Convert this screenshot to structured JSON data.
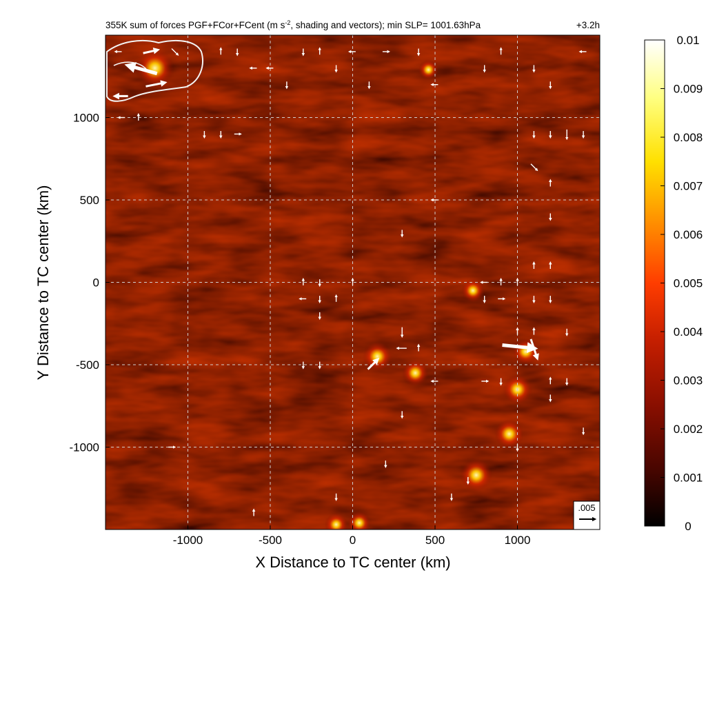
{
  "figure": {
    "title": "355K sum of forces PGF+FCor+FCent (m s",
    "title_sup": "-2",
    "title_tail": ", shading and vectors); min SLP= 1001.63hPa",
    "time_label": "+3.2h",
    "xlabel": "X Distance to TC center (km)",
    "ylabel": "Y Distance to TC center (km)",
    "reference_vector_label": ".005"
  },
  "colors": {
    "background_field": "#2a0400",
    "gridline": "#cfcfcf",
    "vectors": "#ffffff",
    "contour": "#f3f3f3",
    "colormap": [
      "#000000",
      "#4a0600",
      "#8a0f00",
      "#c41e00",
      "#ff3d00",
      "#ff8c00",
      "#ffe000",
      "#ffff80",
      "#ffffff"
    ]
  },
  "chart_data": {
    "type": "heatmap",
    "title": "355K sum of forces PGF+FCor+FCent (m s-2, shading and vectors); min SLP= 1001.63hPa",
    "time_label": "+3.2h",
    "xlabel": "X Distance to TC center (km)",
    "ylabel": "Y Distance to TC center (km)",
    "xlim": [
      -1500,
      1500
    ],
    "ylim": [
      -1500,
      1500
    ],
    "xticks": [
      -1000,
      -500,
      0,
      500,
      1000
    ],
    "yticks": [
      -1000,
      -500,
      0,
      500,
      1000
    ],
    "xtick_labels": [
      "-1000",
      "-500",
      "0",
      "500",
      "1000"
    ],
    "ytick_labels": [
      "-1000",
      "-500",
      "0",
      "500",
      "1000"
    ],
    "grid": true,
    "colorbar": {
      "range": [
        0,
        0.01
      ],
      "ticks": [
        0,
        0.001,
        0.002,
        0.003,
        0.004,
        0.005,
        0.006,
        0.007,
        0.008,
        0.009,
        0.01
      ],
      "tick_labels": [
        "0",
        "0.001",
        "0.002",
        "0.003",
        "0.004",
        "0.005",
        "0.006",
        "0.007",
        "0.008",
        "0.009",
        "0.01"
      ]
    },
    "reference_vector": 0.005,
    "hotspots": [
      {
        "x": -1200,
        "y": 1300,
        "value": 0.009
      },
      {
        "x": 150,
        "y": -450,
        "value": 0.006
      },
      {
        "x": 380,
        "y": -550,
        "value": 0.005
      },
      {
        "x": 1000,
        "y": -650,
        "value": 0.006
      },
      {
        "x": 1050,
        "y": -420,
        "value": 0.005
      },
      {
        "x": 950,
        "y": -920,
        "value": 0.006
      },
      {
        "x": 750,
        "y": -1170,
        "value": 0.007
      },
      {
        "x": 730,
        "y": -50,
        "value": 0.004
      },
      {
        "x": 460,
        "y": 1290,
        "value": 0.003
      },
      {
        "x": -100,
        "y": -1470,
        "value": 0.004
      },
      {
        "x": 40,
        "y": -1460,
        "value": 0.004
      }
    ],
    "vectors": [
      {
        "x": -1420,
        "y": 1400,
        "u": -0.002,
        "v": 0.0
      },
      {
        "x": -1230,
        "y": 1400,
        "u": 0.0045,
        "v": 0.001
      },
      {
        "x": -1270,
        "y": 1290,
        "u": -0.009,
        "v": 0.0025
      },
      {
        "x": -1200,
        "y": 1200,
        "u": 0.006,
        "v": 0.0012
      },
      {
        "x": -1400,
        "y": 1130,
        "u": -0.004,
        "v": 0.0
      },
      {
        "x": -1080,
        "y": 1400,
        "u": 0.002,
        "v": -0.002
      },
      {
        "x": -800,
        "y": 1400,
        "u": 0.0,
        "v": 0.002
      },
      {
        "x": -700,
        "y": 1400,
        "u": 0.0,
        "v": -0.002
      },
      {
        "x": -600,
        "y": 1300,
        "u": -0.002,
        "v": 0.0
      },
      {
        "x": -500,
        "y": 1300,
        "u": -0.002,
        "v": 0.0
      },
      {
        "x": -400,
        "y": 1200,
        "u": 0.0,
        "v": -0.002
      },
      {
        "x": -300,
        "y": 1400,
        "u": 0.0,
        "v": -0.002
      },
      {
        "x": -200,
        "y": 1400,
        "u": 0.0,
        "v": 0.002
      },
      {
        "x": -100,
        "y": 1300,
        "u": 0.0,
        "v": -0.002
      },
      {
        "x": 0,
        "y": 1400,
        "u": -0.002,
        "v": 0.0
      },
      {
        "x": 100,
        "y": 1200,
        "u": 0.0,
        "v": -0.002
      },
      {
        "x": 200,
        "y": 1400,
        "u": 0.002,
        "v": 0.0
      },
      {
        "x": 400,
        "y": 1400,
        "u": 0.0,
        "v": -0.002
      },
      {
        "x": 500,
        "y": 1200,
        "u": -0.002,
        "v": 0.0
      },
      {
        "x": 800,
        "y": 1300,
        "u": 0.0,
        "v": -0.002
      },
      {
        "x": 900,
        "y": 1400,
        "u": 0.0,
        "v": 0.002
      },
      {
        "x": 1100,
        "y": 1300,
        "u": 0.0,
        "v": -0.002
      },
      {
        "x": 1200,
        "y": 1200,
        "u": 0.0,
        "v": -0.002
      },
      {
        "x": 1400,
        "y": 1400,
        "u": -0.002,
        "v": 0.0
      },
      {
        "x": -1400,
        "y": 1000,
        "u": -0.002,
        "v": 0.0
      },
      {
        "x": -1300,
        "y": 1000,
        "u": 0.0,
        "v": 0.002
      },
      {
        "x": -900,
        "y": 900,
        "u": 0.0,
        "v": -0.002
      },
      {
        "x": -800,
        "y": 900,
        "u": 0.0,
        "v": -0.002
      },
      {
        "x": -700,
        "y": 900,
        "u": 0.002,
        "v": 0.0
      },
      {
        "x": 1100,
        "y": 900,
        "u": 0.0,
        "v": -0.002
      },
      {
        "x": 1200,
        "y": 900,
        "u": 0.0,
        "v": -0.002
      },
      {
        "x": 1300,
        "y": 900,
        "u": 0.0,
        "v": -0.003
      },
      {
        "x": 1400,
        "y": 900,
        "u": 0.0,
        "v": -0.002
      },
      {
        "x": 1100,
        "y": 700,
        "u": 0.002,
        "v": -0.002
      },
      {
        "x": 1200,
        "y": 600,
        "u": 0.0,
        "v": 0.002
      },
      {
        "x": 1200,
        "y": 400,
        "u": 0.0,
        "v": -0.002
      },
      {
        "x": 300,
        "y": 300,
        "u": 0.0,
        "v": -0.002
      },
      {
        "x": 500,
        "y": 500,
        "u": -0.002,
        "v": 0.0
      },
      {
        "x": 1100,
        "y": 100,
        "u": 0.0,
        "v": 0.002
      },
      {
        "x": 1200,
        "y": 100,
        "u": 0.0,
        "v": 0.002
      },
      {
        "x": -300,
        "y": 0,
        "u": 0.0,
        "v": 0.002
      },
      {
        "x": -200,
        "y": 0,
        "u": 0.0,
        "v": -0.002
      },
      {
        "x": 0,
        "y": 0,
        "u": 0.0,
        "v": 0.002
      },
      {
        "x": 800,
        "y": 0,
        "u": -0.002,
        "v": 0.0
      },
      {
        "x": 900,
        "y": 0,
        "u": 0.0,
        "v": 0.002
      },
      {
        "x": 1000,
        "y": 0,
        "u": 0.0,
        "v": 0.002
      },
      {
        "x": -300,
        "y": -100,
        "u": -0.002,
        "v": 0.0
      },
      {
        "x": -200,
        "y": -100,
        "u": 0.0,
        "v": -0.002
      },
      {
        "x": -100,
        "y": -100,
        "u": 0.0,
        "v": 0.002
      },
      {
        "x": 800,
        "y": -100,
        "u": 0.0,
        "v": -0.002
      },
      {
        "x": 900,
        "y": -100,
        "u": 0.002,
        "v": 0.0
      },
      {
        "x": 1100,
        "y": -100,
        "u": 0.0,
        "v": -0.002
      },
      {
        "x": 1200,
        "y": -100,
        "u": 0.0,
        "v": -0.002
      },
      {
        "x": -200,
        "y": -200,
        "u": 0.0,
        "v": -0.002
      },
      {
        "x": 300,
        "y": -300,
        "u": 0.0,
        "v": -0.003
      },
      {
        "x": 1000,
        "y": -300,
        "u": 0.0,
        "v": 0.002
      },
      {
        "x": 1300,
        "y": -300,
        "u": 0.0,
        "v": -0.002
      },
      {
        "x": 1100,
        "y": -300,
        "u": 0.0,
        "v": 0.002
      },
      {
        "x": 1000,
        "y": -390,
        "u": 0.01,
        "v": -0.001
      },
      {
        "x": 1100,
        "y": -400,
        "u": 0.002,
        "v": -0.006
      },
      {
        "x": 300,
        "y": -400,
        "u": -0.003,
        "v": 0.0
      },
      {
        "x": 400,
        "y": -400,
        "u": 0.0,
        "v": 0.002
      },
      {
        "x": 120,
        "y": -500,
        "u": 0.003,
        "v": 0.003
      },
      {
        "x": -300,
        "y": -500,
        "u": 0.0,
        "v": -0.002
      },
      {
        "x": -200,
        "y": -500,
        "u": 0.0,
        "v": -0.002
      },
      {
        "x": 500,
        "y": -600,
        "u": -0.002,
        "v": 0.0
      },
      {
        "x": 800,
        "y": -600,
        "u": 0.002,
        "v": 0.0
      },
      {
        "x": 900,
        "y": -600,
        "u": 0.0,
        "v": -0.002
      },
      {
        "x": 1200,
        "y": -600,
        "u": 0.0,
        "v": 0.002
      },
      {
        "x": 1300,
        "y": -600,
        "u": 0.0,
        "v": -0.002
      },
      {
        "x": 300,
        "y": -800,
        "u": 0.0,
        "v": -0.002
      },
      {
        "x": 1200,
        "y": -700,
        "u": 0.0,
        "v": -0.002
      },
      {
        "x": 1000,
        "y": -1000,
        "u": 0.0,
        "v": -0.002
      },
      {
        "x": 1400,
        "y": -900,
        "u": 0.0,
        "v": -0.002
      },
      {
        "x": -1100,
        "y": -1000,
        "u": 0.002,
        "v": 0.0
      },
      {
        "x": 200,
        "y": -1100,
        "u": 0.0,
        "v": -0.002
      },
      {
        "x": 700,
        "y": -1200,
        "u": 0.0,
        "v": -0.002
      },
      {
        "x": 600,
        "y": -1300,
        "u": 0.0,
        "v": -0.002
      },
      {
        "x": -100,
        "y": -1300,
        "u": 0.0,
        "v": -0.002
      },
      {
        "x": -600,
        "y": -1400,
        "u": 0.0,
        "v": 0.002
      }
    ]
  }
}
